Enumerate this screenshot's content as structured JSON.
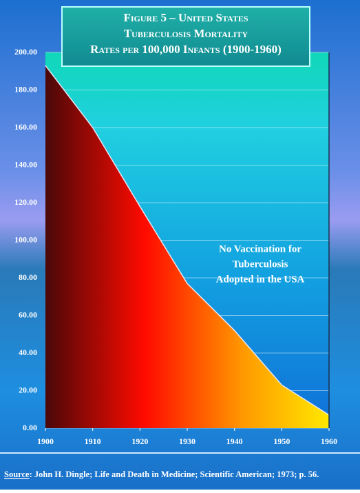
{
  "chart_data": {
    "type": "area",
    "title": [
      "Figure 5 – United States",
      "Tuberculosis Mortality",
      "Rates per 100,000 Infants  (1900-1960)"
    ],
    "annotation": [
      "No Vaccination for",
      "Tuberculosis",
      "Adopted in the USA"
    ],
    "source": {
      "label": "Source",
      "text": ": John H. Dingle;  Life and Death in Medicine; Scientific American; 1973; p. 56."
    },
    "x": [
      1900,
      1910,
      1920,
      1930,
      1940,
      1950,
      1960
    ],
    "values": [
      193,
      160,
      118,
      77,
      52,
      23,
      7
    ],
    "xlim": [
      1900,
      1960
    ],
    "xticks": [
      1900,
      1910,
      1920,
      1930,
      1940,
      1950,
      1960
    ],
    "ylim": [
      0,
      200
    ],
    "yticks": [
      {
        "value": 0,
        "label": "0.00"
      },
      {
        "value": 20,
        "label": "20.00"
      },
      {
        "value": 40,
        "label": "40.00"
      },
      {
        "value": 60,
        "label": "60.00"
      },
      {
        "value": 80,
        "label": "80.00"
      },
      {
        "value": 100,
        "label": "100.00"
      },
      {
        "value": 120,
        "label": "120.00"
      },
      {
        "value": 140,
        "label": "140.00"
      },
      {
        "value": 160,
        "label": "160.00"
      },
      {
        "value": 180,
        "label": "180.00"
      },
      {
        "value": 200,
        "label": "200.00"
      }
    ],
    "grid": true
  }
}
